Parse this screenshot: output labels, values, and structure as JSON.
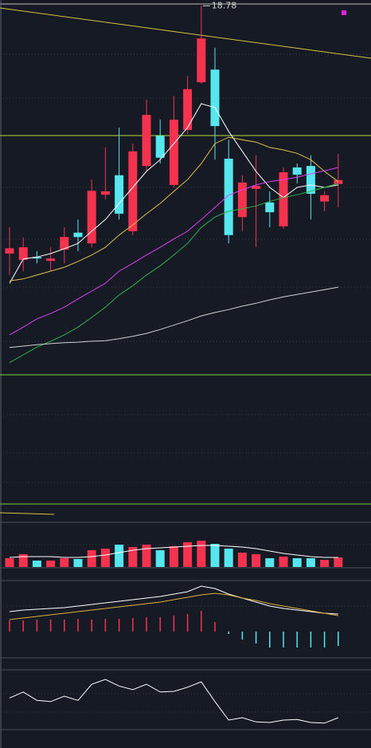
{
  "chart_data": [
    {
      "type": "candlestick",
      "up_color": "#f5334f",
      "down_color": "#55e6f0",
      "ylim": [
        11.2,
        18.9
      ],
      "open": [
        13.69,
        13.56,
        13.62,
        13.54,
        13.77,
        14.12,
        13.9,
        14.9,
        15.3,
        14.15,
        15.49,
        16.11,
        15.1,
        16.23,
        17.21,
        17.47,
        15.64,
        14.44,
        15.02,
        14.74,
        14.25,
        15.46,
        15.49,
        14.76,
        15.12
      ],
      "close": [
        13.8,
        13.82,
        13.59,
        13.59,
        14.03,
        14.03,
        14.98,
        14.97,
        14.51,
        15.79,
        16.54,
        15.66,
        16.44,
        17.07,
        18.11,
        16.31,
        14.07,
        15.15,
        15.08,
        14.54,
        15.36,
        15.31,
        14.92,
        14.89,
        15.2
      ],
      "high": [
        14.23,
        14.02,
        13.74,
        13.82,
        14.23,
        14.39,
        15.21,
        15.87,
        16.28,
        15.95,
        16.85,
        16.44,
        16.93,
        17.34,
        18.78,
        17.92,
        16.03,
        15.3,
        15.71,
        14.97,
        15.46,
        15.54,
        15.71,
        14.97,
        15.74
      ],
      "low": [
        13.25,
        13.33,
        13.49,
        13.33,
        13.49,
        13.74,
        13.82,
        14.8,
        14.39,
        14.07,
        15.38,
        15.54,
        15.05,
        16.15,
        17.18,
        15.62,
        13.9,
        14.15,
        13.82,
        14.23,
        14.2,
        15.13,
        14.39,
        14.56,
        14.64
      ],
      "series": [
        {
          "color": "#ffffff",
          "values": [
            13.08,
            13.58,
            13.62,
            13.69,
            13.79,
            13.9,
            14.15,
            14.39,
            14.72,
            15.05,
            15.38,
            15.62,
            15.95,
            16.28,
            16.77,
            16.69,
            16.2,
            15.79,
            15.38,
            15.05,
            14.84,
            15.05,
            15.1,
            15.05,
            15.1
          ]
        },
        {
          "color": "#e2c24a",
          "values": [
            13.13,
            13.17,
            13.25,
            13.33,
            13.41,
            13.53,
            13.66,
            13.82,
            14.07,
            14.28,
            14.51,
            14.72,
            14.97,
            15.21,
            15.54,
            15.95,
            16.08,
            16.03,
            15.98,
            15.87,
            15.82,
            15.75,
            15.62,
            15.38,
            15.17
          ]
        },
        {
          "color": "#e040fb",
          "values": [
            12.02,
            12.18,
            12.35,
            12.46,
            12.59,
            12.76,
            12.92,
            13.08,
            13.33,
            13.49,
            13.66,
            13.82,
            13.99,
            14.15,
            14.39,
            14.64,
            14.89,
            15.0,
            15.1,
            15.17,
            15.21,
            15.26,
            15.33,
            15.39,
            15.46
          ]
        },
        {
          "color": "#2fb54a",
          "values": [
            11.45,
            11.61,
            11.77,
            11.89,
            12.02,
            12.18,
            12.38,
            12.59,
            12.84,
            13.03,
            13.25,
            13.44,
            13.66,
            13.9,
            14.23,
            14.44,
            14.56,
            14.61,
            14.67,
            14.76,
            14.84,
            14.9,
            14.97,
            15.05,
            15.13
          ]
        },
        {
          "color": "#d0d0d0",
          "values": [
            11.76,
            11.79,
            11.82,
            11.84,
            11.86,
            11.87,
            11.89,
            11.9,
            11.94,
            11.99,
            12.05,
            12.13,
            12.22,
            12.31,
            12.41,
            12.48,
            12.54,
            12.61,
            12.67,
            12.74,
            12.8,
            12.85,
            12.9,
            12.95,
            13.0
          ]
        }
      ]
    },
    {
      "type": "bar",
      "ylim": [
        0,
        56
      ],
      "values": [
        11,
        16,
        8,
        8,
        11,
        10,
        21,
        23,
        28,
        25,
        28,
        21,
        26,
        31,
        33,
        29,
        23,
        18,
        16,
        11,
        13,
        11,
        11,
        9,
        12
      ],
      "series": [
        {
          "color": "#ffffff",
          "values": [
            12,
            13,
            13,
            13,
            12,
            12,
            13,
            15,
            18,
            21,
            23,
            24,
            25,
            26,
            27,
            27,
            26,
            25,
            23,
            20,
            17,
            15,
            13,
            12,
            12
          ]
        }
      ]
    },
    {
      "type": "macd",
      "ylim": [
        -0.66,
        1.28
      ],
      "up_color": "#f5334f",
      "down_color": "#55e6f0",
      "values": [
        0.28,
        0.28,
        0.3,
        0.3,
        0.3,
        0.32,
        0.3,
        0.32,
        0.32,
        0.34,
        0.36,
        0.36,
        0.4,
        0.44,
        0.52,
        0.24,
        -0.06,
        -0.2,
        -0.3,
        -0.4,
        -0.4,
        -0.4,
        -0.4,
        -0.4,
        -0.36
      ],
      "series": [
        {
          "color": "#ffffff",
          "values": [
            0.5,
            0.54,
            0.56,
            0.58,
            0.6,
            0.64,
            0.68,
            0.72,
            0.76,
            0.8,
            0.84,
            0.88,
            0.94,
            1.0,
            1.14,
            1.08,
            0.94,
            0.84,
            0.74,
            0.64,
            0.58,
            0.54,
            0.5,
            0.46,
            0.44
          ]
        },
        {
          "color": "#e2b23a",
          "values": [
            0.3,
            0.34,
            0.38,
            0.42,
            0.46,
            0.5,
            0.54,
            0.58,
            0.62,
            0.66,
            0.7,
            0.74,
            0.8,
            0.86,
            0.92,
            0.96,
            0.92,
            0.84,
            0.78,
            0.7,
            0.64,
            0.58,
            0.52,
            0.46,
            0.4
          ]
        }
      ]
    },
    {
      "type": "line",
      "ylim": [
        0,
        100
      ],
      "series": [
        {
          "color": "#ffffff",
          "values": [
            53,
            63,
            49,
            47,
            56,
            49,
            76,
            84,
            73,
            67,
            76,
            63,
            64,
            71,
            80,
            47,
            16,
            20,
            13,
            12,
            16,
            17,
            12,
            11,
            20
          ]
        }
      ]
    }
  ]
}
